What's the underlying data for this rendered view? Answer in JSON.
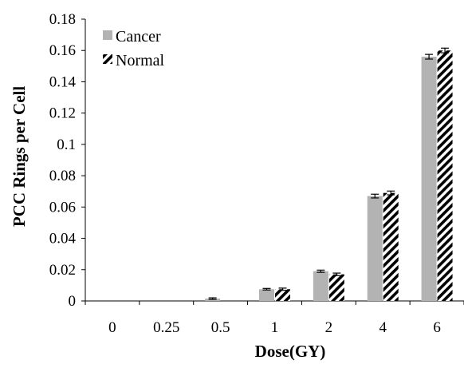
{
  "colors": {
    "cancer": "#b3b3b3",
    "normal_stripe": "#000000",
    "normal_bg": "#ffffff",
    "axis": "#000000",
    "error_bar": "#000000"
  },
  "chart_data": {
    "type": "bar",
    "title": "",
    "xlabel": "Dose(GY)",
    "ylabel": "PCC Rings per Cell",
    "categories": [
      "0",
      "0.25",
      "0.5",
      "1",
      "2",
      "4",
      "6"
    ],
    "ylim": [
      0,
      0.18
    ],
    "yticks": [
      0,
      0.02,
      0.04,
      0.06,
      0.08,
      0.1,
      0.12,
      0.14,
      0.16,
      0.18
    ],
    "ytick_labels": [
      "0",
      "0.02",
      "0.04",
      "0.06",
      "0.08",
      "0.1",
      "0.12",
      "0.14",
      "0.16",
      "0.18"
    ],
    "grid": false,
    "legend_position": "top-left",
    "series": [
      {
        "name": "Cancer",
        "pattern": "solid",
        "values": [
          0,
          0,
          0.0015,
          0.0075,
          0.019,
          0.067,
          0.156
        ],
        "errors": [
          0,
          0,
          0.0005,
          0.0005,
          0.0007,
          0.0012,
          0.0015
        ]
      },
      {
        "name": "Normal",
        "pattern": "diagonal-stripes",
        "values": [
          0,
          0,
          0,
          0.0075,
          0.017,
          0.069,
          0.16
        ],
        "errors": [
          0,
          0,
          0,
          0.0007,
          0.0008,
          0.0012,
          0.0015
        ]
      }
    ]
  }
}
